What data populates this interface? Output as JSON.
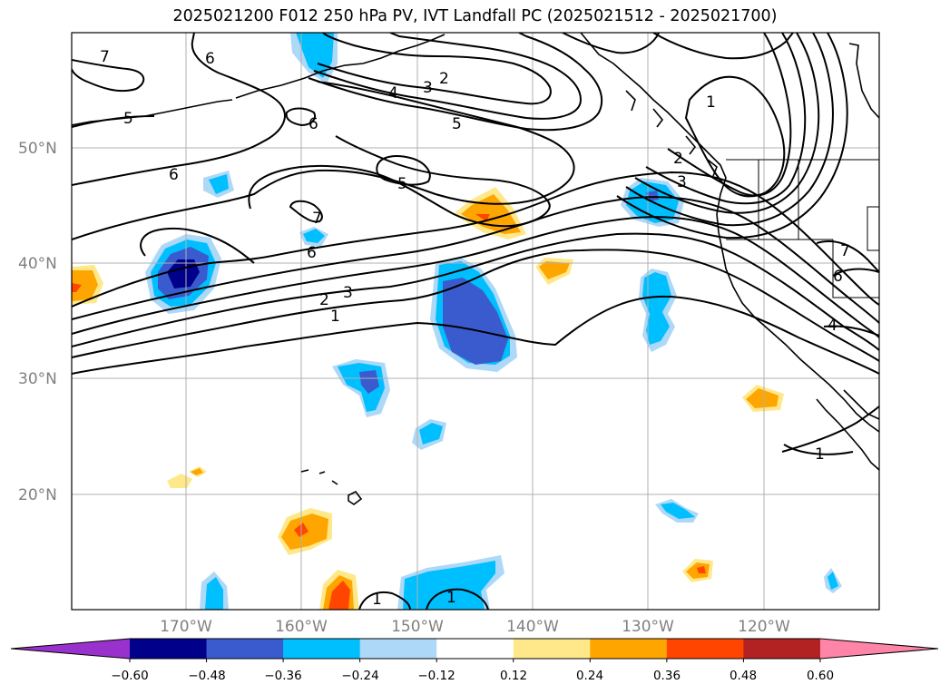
{
  "title": "2025021200 F012 250 hPa PV, IVT Landfall PC (2025021512 - 2025021700)",
  "lat_labels": [
    "50°N",
    "40°N",
    "30°N",
    "20°N"
  ],
  "lon_labels": [
    "170°W",
    "160°W",
    "150°W",
    "140°W",
    "130°W",
    "120°W"
  ],
  "contour_labels": [
    "7",
    "6",
    "5",
    "2",
    "3",
    "4",
    "5",
    "6",
    "1",
    "2",
    "3",
    "7",
    "6",
    "5",
    "6",
    "2",
    "3",
    "1",
    "1",
    "1",
    "1",
    "6",
    "4",
    "7"
  ],
  "colorbar": {
    "ticks": [
      "−0.60",
      "−0.48",
      "−0.36",
      "−0.24",
      "−0.12",
      "0.12",
      "0.24",
      "0.36",
      "0.48",
      "0.60"
    ],
    "colors": [
      "#9932cc",
      "#00008b",
      "#3a5bcd",
      "#00bfff",
      "#add8f7",
      "#ffffff",
      "#ffe88a",
      "#ffa500",
      "#ff4500",
      "#b22222",
      "#ff85a8"
    ]
  },
  "colors": {
    "positive_light": "#ffe88a",
    "positive_mid": "#ffa500",
    "positive_high": "#ff4500",
    "negative_light": "#add8f7",
    "negative_mid": "#00bfff",
    "negative_high": "#3a5bcd",
    "negative_max": "#00008b",
    "grid": "#b0b0b0"
  }
}
